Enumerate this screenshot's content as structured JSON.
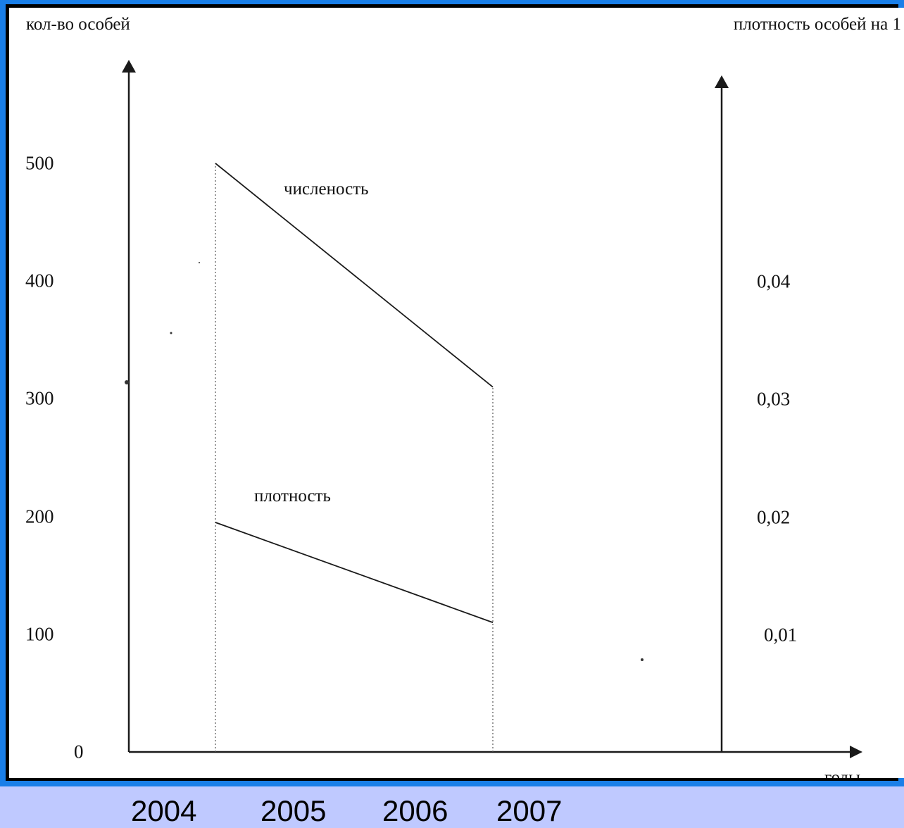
{
  "chart_data": {
    "type": "line",
    "xlabel": "годы",
    "ylabel": "кол-во особей",
    "ylabel_right": "плотность особей на 1",
    "x_categories": [
      "2004",
      "2005",
      "2006",
      "2007"
    ],
    "y_ticks": [
      "0",
      "100",
      "200",
      "300",
      "400",
      "500"
    ],
    "y_right_ticks": [
      "0,01",
      "0,02",
      "0,03",
      "0,04"
    ],
    "ylim": [
      0,
      500
    ],
    "y_right_lim": [
      0,
      0.05
    ],
    "grid": false,
    "series": [
      {
        "name": "численость",
        "axis": "left",
        "x": [
          2004,
          2007
        ],
        "values": [
          500,
          310
        ]
      },
      {
        "name": "плотность",
        "axis": "right",
        "x": [
          2004,
          2007
        ],
        "values": [
          0.0195,
          0.011
        ]
      }
    ]
  }
}
